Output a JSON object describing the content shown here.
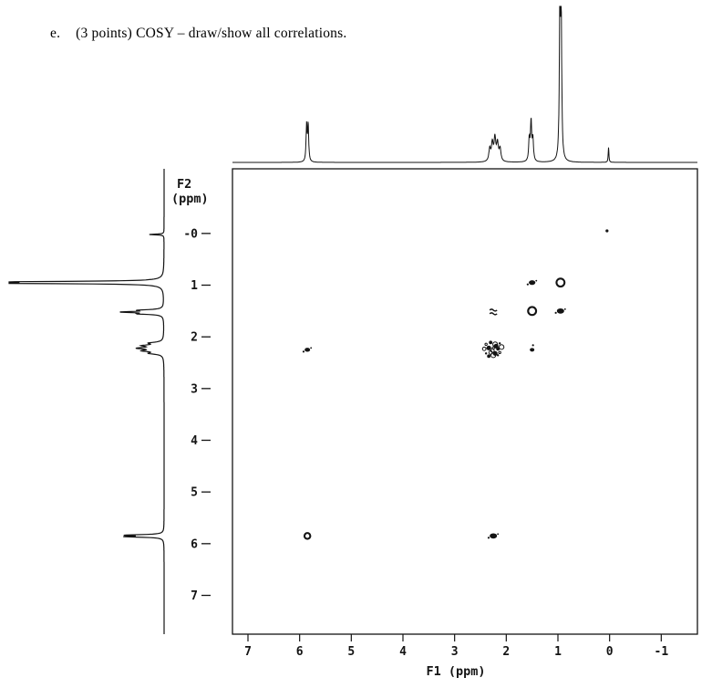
{
  "question": {
    "label": "e.",
    "text": "(3 points) COSY – draw/show all correlations."
  },
  "chart_data": {
    "type": "scatter",
    "xlabel": "F1 (ppm)",
    "ylabel": "F2 (ppm)",
    "xlim": [
      7.3,
      -1.7
    ],
    "ylim": [
      -1.25,
      7.75
    ],
    "x_ticks": [
      {
        "label": "7",
        "value": 7
      },
      {
        "label": "6",
        "value": 6
      },
      {
        "label": "5",
        "value": 5
      },
      {
        "label": "4",
        "value": 4
      },
      {
        "label": "3",
        "value": 3
      },
      {
        "label": "2",
        "value": 2
      },
      {
        "label": "1",
        "value": 1
      },
      {
        "label": "0",
        "value": 0
      },
      {
        "label": "-1",
        "value": -1
      }
    ],
    "y_ticks": [
      {
        "label": "-0",
        "value": 0
      },
      {
        "label": "1",
        "value": 1
      },
      {
        "label": "2",
        "value": 2
      },
      {
        "label": "3",
        "value": 3
      },
      {
        "label": "4",
        "value": 4
      },
      {
        "label": "5",
        "value": 5
      },
      {
        "label": "6",
        "value": 6
      },
      {
        "label": "7",
        "value": 7
      }
    ],
    "projection_peaks": [
      {
        "ppm": 5.85,
        "height": 0.24,
        "half_width": 0.012,
        "multiplicity": 2,
        "spacing": 0.03
      },
      {
        "ppm": 2.22,
        "height": 0.15,
        "half_width": 0.02,
        "multiplicity": 5,
        "spacing": 0.05
      },
      {
        "ppm": 1.52,
        "height": 0.26,
        "half_width": 0.014,
        "multiplicity": 3,
        "spacing": 0.035
      },
      {
        "ppm": 0.95,
        "height": 1.0,
        "half_width": 0.012,
        "multiplicity": 2,
        "spacing": 0.025
      },
      {
        "ppm": 0.02,
        "height": 0.1,
        "half_width": 0.008,
        "multiplicity": 1,
        "spacing": 0
      }
    ],
    "cross_peaks": [
      {
        "f1": 5.85,
        "f2": 5.85,
        "kind": "diagonal",
        "style": "ring",
        "r": 3.2
      },
      {
        "f1": 2.25,
        "f2": 5.85,
        "kind": "cross",
        "style": "blob",
        "r": 4
      },
      {
        "f1": 5.85,
        "f2": 2.25,
        "kind": "cross",
        "style": "blob",
        "r": 3
      },
      {
        "f1": 2.25,
        "f2": 2.25,
        "kind": "diagonal",
        "style": "cluster",
        "r": 11
      },
      {
        "f1": 1.5,
        "f2": 2.25,
        "kind": "cross",
        "style": "smallblob",
        "r": 2.5
      },
      {
        "f1": 2.25,
        "f2": 1.5,
        "kind": "cross",
        "style": "squiggle",
        "r": 4
      },
      {
        "f1": 1.5,
        "f2": 1.5,
        "kind": "diagonal",
        "style": "ring",
        "r": 4.4
      },
      {
        "f1": 0.95,
        "f2": 1.5,
        "kind": "cross",
        "style": "blob",
        "r": 4
      },
      {
        "f1": 1.5,
        "f2": 0.95,
        "kind": "cross",
        "style": "blob",
        "r": 3.6
      },
      {
        "f1": 0.95,
        "f2": 0.95,
        "kind": "diagonal",
        "style": "ring",
        "r": 4.4
      },
      {
        "f1": 0.05,
        "f2": -0.05,
        "kind": "impurity",
        "style": "dot",
        "r": 1.6
      }
    ],
    "correlations": [
      {
        "a_ppm": 5.85,
        "b_ppm": 2.25
      },
      {
        "a_ppm": 2.25,
        "b_ppm": 1.5
      },
      {
        "a_ppm": 1.5,
        "b_ppm": 0.95
      }
    ]
  }
}
